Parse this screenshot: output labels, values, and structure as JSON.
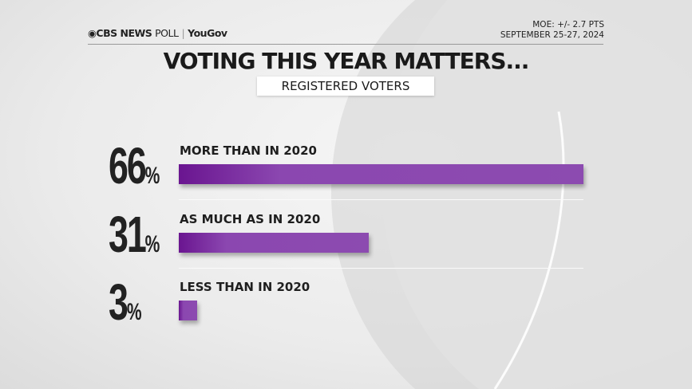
{
  "header": {
    "brand": "CBS NEWS",
    "poll": "POLL",
    "partner": "YouGov",
    "moe": "MOE: +/- 2.7 PTS",
    "dates": "SEPTEMBER 25-27, 2024"
  },
  "chart_data": {
    "type": "bar",
    "orientation": "horizontal",
    "title": "VOTING THIS YEAR MATTERS...",
    "subtitle": "REGISTERED VOTERS",
    "categories": [
      "MORE THAN IN 2020",
      "AS MUCH AS IN 2020",
      "LESS THAN IN 2020"
    ],
    "values": [
      66,
      31,
      3
    ],
    "value_labels": [
      "66",
      "31",
      "3"
    ],
    "unit": "%",
    "bar_color": "#8c4bb0",
    "grid": false
  }
}
